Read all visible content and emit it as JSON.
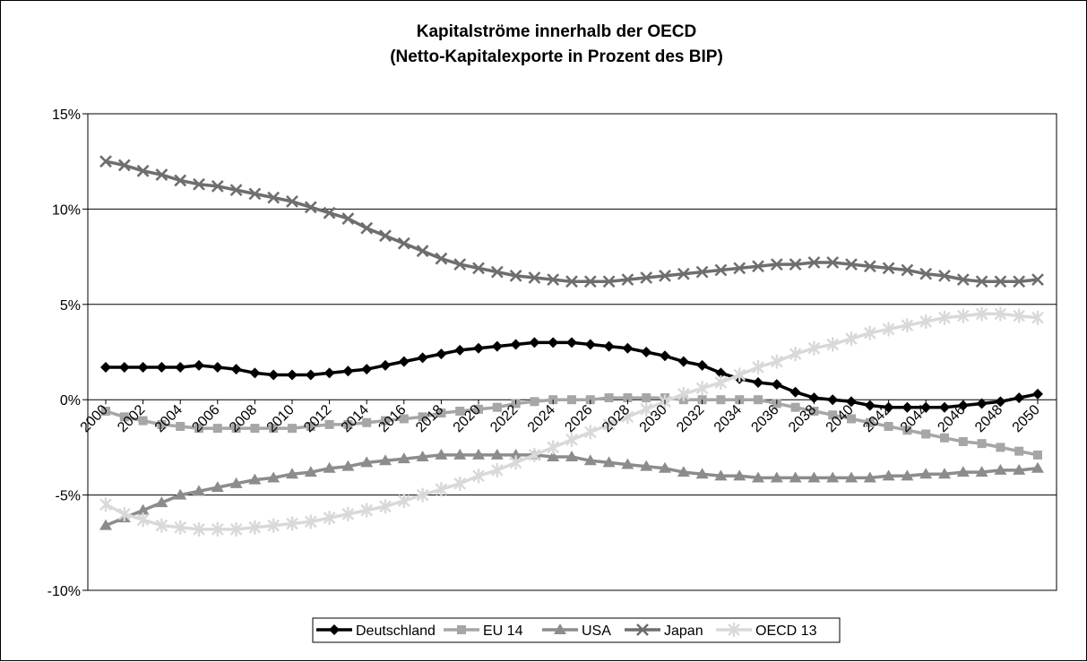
{
  "chart_data": {
    "type": "line",
    "title": "Kapitalströme innerhalb der OECD",
    "subtitle": "(Netto-Kapitalexporte in Prozent des BIP)",
    "xlabel": "",
    "ylabel": "",
    "x": [
      2000,
      2001,
      2002,
      2003,
      2004,
      2005,
      2006,
      2007,
      2008,
      2009,
      2010,
      2011,
      2012,
      2013,
      2014,
      2015,
      2016,
      2017,
      2018,
      2019,
      2020,
      2021,
      2022,
      2023,
      2024,
      2025,
      2026,
      2027,
      2028,
      2029,
      2030,
      2031,
      2032,
      2033,
      2034,
      2035,
      2036,
      2037,
      2038,
      2039,
      2040,
      2041,
      2042,
      2043,
      2044,
      2045,
      2046,
      2047,
      2048,
      2049,
      2050
    ],
    "x_tick_labels": [
      "2000",
      "2002",
      "2004",
      "2006",
      "2008",
      "2010",
      "2012",
      "2014",
      "2016",
      "2018",
      "2020",
      "2022",
      "2024",
      "2026",
      "2028",
      "2030",
      "2032",
      "2034",
      "2036",
      "2038",
      "2040",
      "2042",
      "2044",
      "2046",
      "2048",
      "2050"
    ],
    "y_tick_labels": [
      "15%",
      "10%",
      "5%",
      "0%",
      "-5%",
      "-10%"
    ],
    "ylim": [
      -10,
      15
    ],
    "grid": "horizontal",
    "legend_position": "bottom",
    "series": [
      {
        "name": "Deutschland",
        "color": "#000000",
        "marker": "diamond",
        "values": [
          1.7,
          1.7,
          1.7,
          1.7,
          1.7,
          1.8,
          1.7,
          1.6,
          1.4,
          1.3,
          1.3,
          1.3,
          1.4,
          1.5,
          1.6,
          1.8,
          2.0,
          2.2,
          2.4,
          2.6,
          2.7,
          2.8,
          2.9,
          3.0,
          3.0,
          3.0,
          2.9,
          2.8,
          2.7,
          2.5,
          2.3,
          2.0,
          1.8,
          1.4,
          1.1,
          0.9,
          0.8,
          0.4,
          0.1,
          0.0,
          -0.1,
          -0.3,
          -0.4,
          -0.4,
          -0.4,
          -0.4,
          -0.3,
          -0.2,
          -0.1,
          0.1,
          0.3
        ]
      },
      {
        "name": "EU 14",
        "color": "#a6a6a6",
        "marker": "square",
        "values": [
          -0.6,
          -0.9,
          -1.1,
          -1.3,
          -1.4,
          -1.5,
          -1.5,
          -1.5,
          -1.5,
          -1.5,
          -1.5,
          -1.4,
          -1.3,
          -1.3,
          -1.2,
          -1.1,
          -1.0,
          -0.9,
          -0.7,
          -0.6,
          -0.5,
          -0.4,
          -0.2,
          -0.1,
          0.0,
          0.0,
          0.0,
          0.1,
          0.1,
          0.1,
          0.1,
          0.0,
          0.0,
          0.0,
          0.0,
          0.0,
          -0.2,
          -0.4,
          -0.6,
          -0.8,
          -1.0,
          -1.2,
          -1.4,
          -1.6,
          -1.8,
          -2.0,
          -2.2,
          -2.3,
          -2.5,
          -2.7,
          -2.9
        ]
      },
      {
        "name": "USA",
        "color": "#8c8c8c",
        "marker": "triangle",
        "values": [
          -6.6,
          -6.2,
          -5.8,
          -5.4,
          -5.0,
          -4.8,
          -4.6,
          -4.4,
          -4.2,
          -4.1,
          -3.9,
          -3.8,
          -3.6,
          -3.5,
          -3.3,
          -3.2,
          -3.1,
          -3.0,
          -2.9,
          -2.9,
          -2.9,
          -2.9,
          -2.9,
          -2.9,
          -3.0,
          -3.0,
          -3.2,
          -3.3,
          -3.4,
          -3.5,
          -3.6,
          -3.8,
          -3.9,
          -4.0,
          -4.0,
          -4.1,
          -4.1,
          -4.1,
          -4.1,
          -4.1,
          -4.1,
          -4.1,
          -4.0,
          -4.0,
          -3.9,
          -3.9,
          -3.8,
          -3.8,
          -3.7,
          -3.7,
          -3.6
        ]
      },
      {
        "name": "Japan",
        "color": "#6e6e6e",
        "marker": "x",
        "values": [
          12.5,
          12.3,
          12.0,
          11.8,
          11.5,
          11.3,
          11.2,
          11.0,
          10.8,
          10.6,
          10.4,
          10.1,
          9.8,
          9.5,
          9.0,
          8.6,
          8.2,
          7.8,
          7.4,
          7.1,
          6.9,
          6.7,
          6.5,
          6.4,
          6.3,
          6.2,
          6.2,
          6.2,
          6.3,
          6.4,
          6.5,
          6.6,
          6.7,
          6.8,
          6.9,
          7.0,
          7.1,
          7.1,
          7.2,
          7.2,
          7.1,
          7.0,
          6.9,
          6.8,
          6.6,
          6.5,
          6.3,
          6.2,
          6.2,
          6.2,
          6.3
        ]
      },
      {
        "name": "OECD 13",
        "color": "#d9d9d9",
        "marker": "star",
        "values": [
          -5.5,
          -6.0,
          -6.3,
          -6.6,
          -6.7,
          -6.8,
          -6.8,
          -6.8,
          -6.7,
          -6.6,
          -6.5,
          -6.4,
          -6.2,
          -6.0,
          -5.8,
          -5.6,
          -5.3,
          -5.0,
          -4.7,
          -4.4,
          -4.0,
          -3.7,
          -3.3,
          -2.9,
          -2.5,
          -2.1,
          -1.7,
          -1.3,
          -0.9,
          -0.5,
          -0.1,
          0.3,
          0.6,
          0.9,
          1.3,
          1.7,
          2.0,
          2.4,
          2.7,
          2.9,
          3.2,
          3.5,
          3.7,
          3.9,
          4.1,
          4.3,
          4.4,
          4.5,
          4.5,
          4.4,
          4.3
        ]
      }
    ]
  }
}
